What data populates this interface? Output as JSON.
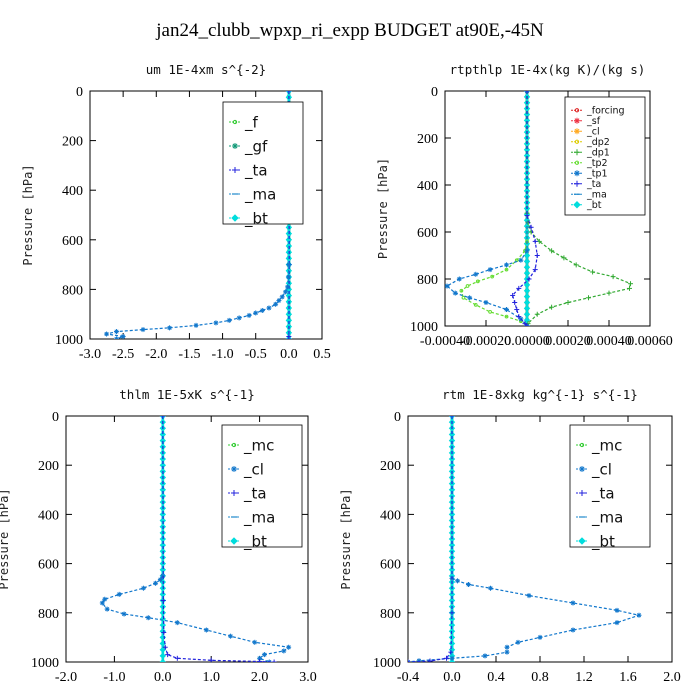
{
  "title": "jan24_clubb_wpxp_ri_expp  BUDGET at90E,-45N",
  "chart_data": [
    {
      "type": "line",
      "title": "um   1E-4xm s^{-2}",
      "ylabel": "Pressure [hPa]",
      "xlim": [
        -3.0,
        0.5
      ],
      "ylim": [
        1000,
        0
      ],
      "xticks": [
        -3.0,
        -2.5,
        -2.0,
        -1.5,
        -1.0,
        -0.5,
        0.0,
        0.5
      ],
      "xtick_labels": [
        "-3.0",
        "-2.5",
        "-2.0",
        "-1.5",
        "-1.0",
        "-0.5",
        "0.0",
        "0.5"
      ],
      "yticks": [
        0,
        200,
        400,
        600,
        800,
        1000
      ],
      "ytick_labels": [
        "0",
        "200",
        "400",
        "600",
        "800",
        "1000"
      ],
      "legend_position": "top-right",
      "series": [
        {
          "name": "_f",
          "color": "#33cc33",
          "marker": "circle",
          "x": [
            0,
            0
          ],
          "y": [
            0,
            1000
          ]
        },
        {
          "name": "_gf",
          "color": "#119977",
          "marker": "star",
          "x": [
            0,
            0
          ],
          "y": [
            0,
            1000
          ]
        },
        {
          "name": "_ta",
          "color": "#2222dd",
          "marker": "plus",
          "x": [
            0,
            0.005,
            0,
            0
          ],
          "y": [
            0,
            700,
            990,
            1000
          ]
        },
        {
          "name": "_ma",
          "color": "#1e88cc",
          "marker": "dash",
          "x": [
            0,
            0
          ],
          "y": [
            0,
            1000
          ]
        },
        {
          "name": "_bt",
          "color": "#00dddd",
          "marker": "diamond",
          "x": [
            0,
            0
          ],
          "y": [
            0,
            1000
          ]
        },
        {
          "name": "",
          "color": "#1177cc",
          "marker": "star",
          "x": [
            0,
            -0.005,
            -0.02,
            -0.05,
            -0.1,
            -0.15,
            -0.2,
            -0.3,
            -0.4,
            -0.5,
            -0.6,
            -0.75,
            -0.9,
            -1.1,
            -1.4,
            -1.8,
            -2.2,
            -2.6,
            -2.75,
            -2.5,
            -2.6
          ],
          "y": [
            700,
            750,
            790,
            810,
            830,
            845,
            860,
            875,
            885,
            895,
            905,
            915,
            925,
            935,
            945,
            955,
            962,
            970,
            980,
            990,
            1000
          ]
        }
      ]
    },
    {
      "type": "line",
      "title": "rtpthlp   1E-4x(kg K)/(kg s)",
      "ylabel": "Pressure [hPa]",
      "xlim": [
        -0.0004,
        0.0006
      ],
      "ylim": [
        1000,
        0
      ],
      "xticks": [
        -0.0004,
        -0.0002,
        0.0,
        0.0002,
        0.0004,
        0.0006
      ],
      "xtick_labels": [
        "-0.00040",
        "-0.00020",
        "0.00000",
        "0.00020",
        "0.00040",
        "0.00060"
      ],
      "yticks": [
        0,
        200,
        400,
        600,
        800,
        1000
      ],
      "ytick_labels": [
        "0",
        "200",
        "400",
        "600",
        "800",
        "1000"
      ],
      "legend_position": "top-right",
      "series": [
        {
          "name": "_forcing",
          "color": "#dd2222",
          "marker": "circle",
          "x": [
            0,
            0
          ],
          "y": [
            0,
            1000
          ]
        },
        {
          "name": "_sf",
          "color": "#ee3344",
          "marker": "star",
          "x": [
            0,
            0
          ],
          "y": [
            0,
            1000
          ]
        },
        {
          "name": "_cl",
          "color": "#ffaa22",
          "marker": "star",
          "x": [
            0,
            0
          ],
          "y": [
            0,
            1000
          ]
        },
        {
          "name": "_dp2",
          "color": "#ddcc00",
          "marker": "circle",
          "x": [
            0,
            0
          ],
          "y": [
            0,
            1000
          ]
        },
        {
          "name": "_dp1",
          "color": "#33aa33",
          "marker": "plus",
          "x": [
            0,
            0,
            5e-06,
            2e-05,
            6e-05,
            0.00012,
            0.00018,
            0.00024,
            0.00032,
            0.00042,
            0.000505,
            0.0005,
            0.0004,
            0.0003,
            0.0002,
            0.00012,
            5e-05,
            5e-06,
            0
          ],
          "y": [
            0,
            520,
            560,
            600,
            640,
            680,
            710,
            740,
            770,
            790,
            820,
            840,
            860,
            880,
            900,
            920,
            950,
            990,
            1000
          ]
        },
        {
          "name": "_tp2",
          "color": "#66dd33",
          "marker": "circle",
          "x": [
            0,
            0,
            -1e-05,
            -5e-05,
            -0.0001,
            -0.00017,
            -0.00024,
            -0.00029,
            -0.00032,
            -0.00031,
            -0.00025,
            -0.00018,
            -0.0001,
            -3e-05,
            0
          ],
          "y": [
            0,
            640,
            680,
            720,
            760,
            790,
            810,
            830,
            850,
            880,
            910,
            940,
            960,
            980,
            1000
          ]
        },
        {
          "name": "_tp1",
          "color": "#1177cc",
          "marker": "star",
          "x": [
            0,
            0,
            -3e-05,
            -0.0001,
            -0.00018,
            -0.00025,
            -0.00033,
            -0.00039,
            -0.00035,
            -0.00028,
            -0.0002,
            -0.0001,
            -3e-05,
            0
          ],
          "y": [
            0,
            680,
            720,
            740,
            760,
            780,
            800,
            830,
            860,
            880,
            900,
            930,
            970,
            1000
          ]
        },
        {
          "name": "_ta",
          "color": "#2222dd",
          "marker": "plus",
          "x": [
            0,
            0,
            2e-05,
            4e-05,
            5e-05,
            4e-05,
            1e-05,
            -4e-05,
            -7e-05,
            -6e-05,
            -5e-05,
            -4e-05,
            -1e-05,
            0
          ],
          "y": [
            0,
            530,
            580,
            640,
            700,
            760,
            800,
            840,
            870,
            900,
            930,
            960,
            990,
            1000
          ]
        },
        {
          "name": "_ma",
          "color": "#1e88cc",
          "marker": "dash",
          "x": [
            0,
            0
          ],
          "y": [
            0,
            1000
          ]
        },
        {
          "name": "_bt",
          "color": "#00dddd",
          "marker": "diamond",
          "x": [
            0,
            0
          ],
          "y": [
            0,
            1000
          ]
        }
      ]
    },
    {
      "type": "line",
      "title": "thlm   1E-5xK s^{-1}",
      "ylabel": "Pressure [hPa]",
      "xlim": [
        -2.0,
        3.0
      ],
      "ylim": [
        1000,
        0
      ],
      "xticks": [
        -2.0,
        -1.0,
        0.0,
        1.0,
        2.0,
        3.0
      ],
      "xtick_labels": [
        "-2.0",
        "-1.0",
        "0.0",
        "1.0",
        "2.0",
        "3.0"
      ],
      "yticks": [
        0,
        200,
        400,
        600,
        800,
        1000
      ],
      "ytick_labels": [
        "0",
        "200",
        "400",
        "600",
        "800",
        "1000"
      ],
      "legend_position": "top-right",
      "series": [
        {
          "name": "_mc",
          "color": "#33cc33",
          "marker": "circle",
          "x": [
            0,
            0
          ],
          "y": [
            0,
            1000
          ]
        },
        {
          "name": "_cl",
          "color": "#1177cc",
          "marker": "star",
          "x": [
            0,
            -0.05,
            -0.15,
            -0.4,
            -0.9,
            -1.2,
            -1.25,
            -1.15,
            -0.8,
            -0.3,
            0.3,
            0.9,
            1.4,
            1.9,
            2.6,
            2.5,
            2.1,
            2.0,
            2.2
          ],
          "y": [
            650,
            665,
            680,
            700,
            725,
            745,
            760,
            785,
            805,
            820,
            840,
            870,
            895,
            920,
            940,
            955,
            970,
            985,
            1000
          ]
        },
        {
          "name": "_ta",
          "color": "#2222dd",
          "marker": "plus",
          "x": [
            0,
            0.01,
            0.02,
            0.05,
            0.1,
            0.3,
            1.0,
            2.0,
            2.3
          ],
          "y": [
            0,
            750,
            880,
            940,
            970,
            985,
            993,
            998,
            1000
          ]
        },
        {
          "name": "_ma",
          "color": "#1e88cc",
          "marker": "dash",
          "x": [
            0,
            0
          ],
          "y": [
            0,
            1000
          ]
        },
        {
          "name": "_bt",
          "color": "#00dddd",
          "marker": "diamond",
          "x": [
            0,
            0
          ],
          "y": [
            0,
            1000
          ]
        }
      ]
    },
    {
      "type": "line",
      "title": "rtm   1E-8xkg kg^{-1} s^{-1}",
      "ylabel": "Pressure [hPa]",
      "xlim": [
        -0.4,
        2.0
      ],
      "ylim": [
        1000,
        0
      ],
      "xticks": [
        -0.4,
        0.0,
        0.4,
        0.8,
        1.2,
        1.6,
        2.0
      ],
      "xtick_labels": [
        "-0.4",
        "0.0",
        "0.4",
        "0.8",
        "1.2",
        "1.6",
        "2.0"
      ],
      "yticks": [
        0,
        200,
        400,
        600,
        800,
        1000
      ],
      "ytick_labels": [
        "0",
        "200",
        "400",
        "600",
        "800",
        "1000"
      ],
      "legend_position": "top-right",
      "series": [
        {
          "name": "_mc",
          "color": "#33cc33",
          "marker": "circle",
          "x": [
            0,
            0
          ],
          "y": [
            0,
            1000
          ]
        },
        {
          "name": "_cl",
          "color": "#1177cc",
          "marker": "star",
          "x": [
            0,
            0.05,
            0.15,
            0.35,
            0.7,
            1.1,
            1.5,
            1.7,
            1.5,
            1.1,
            0.8,
            0.6,
            0.5,
            0.5,
            0.3,
            0.0,
            -0.3,
            -0.4
          ],
          "y": [
            660,
            670,
            685,
            700,
            730,
            760,
            790,
            810,
            840,
            870,
            900,
            920,
            940,
            960,
            975,
            985,
            995,
            1000
          ]
        },
        {
          "name": "_ta",
          "color": "#2222dd",
          "marker": "plus",
          "x": [
            0,
            0,
            -0.01,
            -0.05,
            -0.2,
            -0.4
          ],
          "y": [
            0,
            800,
            960,
            985,
            996,
            1000
          ]
        },
        {
          "name": "_ma",
          "color": "#1e88cc",
          "marker": "dash",
          "x": [
            0,
            0
          ],
          "y": [
            0,
            1000
          ]
        },
        {
          "name": "_bt",
          "color": "#00dddd",
          "marker": "diamond",
          "x": [
            0,
            0
          ],
          "y": [
            0,
            1000
          ]
        }
      ]
    }
  ]
}
